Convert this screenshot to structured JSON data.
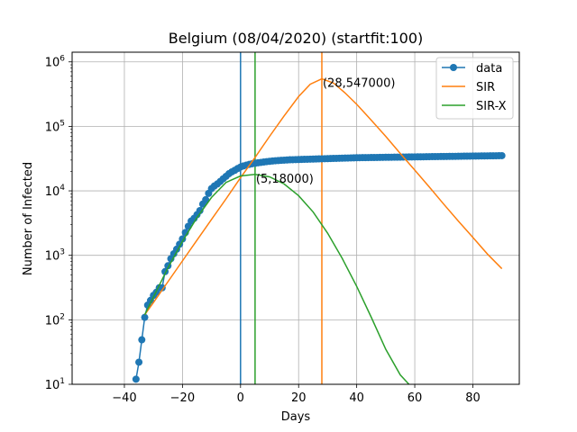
{
  "chart_data": {
    "type": "line",
    "title": "Belgium (08/04/2020) (startfit:100)",
    "xlabel": "Days",
    "ylabel": "Number of Infected",
    "xlim": [
      -58,
      96
    ],
    "ylim_log10": [
      1,
      6.15
    ],
    "yscale": "log",
    "grid": true,
    "legend_position": "top-right",
    "x_ticks": [
      -40,
      -20,
      0,
      20,
      40,
      60,
      80
    ],
    "y_ticks": [
      {
        "exp": 1,
        "base": "10",
        "sup": "1"
      },
      {
        "exp": 2,
        "base": "10",
        "sup": "2"
      },
      {
        "exp": 3,
        "base": "10",
        "sup": "3"
      },
      {
        "exp": 4,
        "base": "10",
        "sup": "4"
      },
      {
        "exp": 5,
        "base": "10",
        "sup": "5"
      },
      {
        "exp": 6,
        "base": "10",
        "sup": "6"
      }
    ],
    "colors": {
      "data": "#1f77b4",
      "sir": "#ff7f0e",
      "sirx": "#2ca02c"
    },
    "legend": [
      {
        "key": "data",
        "label": "data"
      },
      {
        "key": "sir",
        "label": "SIR"
      },
      {
        "key": "sirx",
        "label": "SIR-X"
      }
    ],
    "vlines": [
      {
        "x": 0,
        "series": "data"
      },
      {
        "x": 5,
        "series": "sirx"
      },
      {
        "x": 28,
        "series": "sir"
      }
    ],
    "annotations": [
      {
        "x": 28,
        "y": 547000,
        "text": "(28,547000)"
      },
      {
        "x": 5,
        "y": 18000,
        "text": "(5,18000)"
      }
    ],
    "series": [
      {
        "key": "data",
        "name": "data",
        "marker": "circle",
        "points": [
          [
            -36,
            12
          ],
          [
            -35,
            22
          ],
          [
            -34,
            49
          ],
          [
            -33,
            109
          ],
          [
            -32,
            169
          ],
          [
            -31,
            200
          ],
          [
            -30,
            239
          ],
          [
            -29,
            267
          ],
          [
            -28,
            314
          ],
          [
            -27,
            314
          ],
          [
            -26,
            559
          ],
          [
            -25,
            689
          ],
          [
            -24,
            886
          ],
          [
            -23,
            1058
          ],
          [
            -22,
            1243
          ],
          [
            -21,
            1486
          ],
          [
            -20,
            1795
          ],
          [
            -19,
            2257
          ],
          [
            -18,
            2815
          ],
          [
            -17,
            3401
          ],
          [
            -16,
            3743
          ],
          [
            -15,
            4269
          ],
          [
            -14,
            4937
          ],
          [
            -13,
            6235
          ],
          [
            -12,
            7284
          ],
          [
            -11,
            9134
          ],
          [
            -10,
            10836
          ],
          [
            -9,
            11899
          ],
          [
            -8,
            12775
          ],
          [
            -7,
            13964
          ],
          [
            -6,
            15348
          ],
          [
            -5,
            16770
          ],
          [
            -4,
            18431
          ],
          [
            -3,
            19691
          ],
          [
            -2,
            20814
          ],
          [
            -1,
            22194
          ],
          [
            0,
            23403
          ],
          [
            1,
            24300
          ],
          [
            2,
            25000
          ],
          [
            3,
            25700
          ],
          [
            4,
            26300
          ],
          [
            5,
            26800
          ],
          [
            6,
            27200
          ],
          [
            7,
            27600
          ],
          [
            8,
            28000
          ],
          [
            9,
            28400
          ],
          [
            10,
            28700
          ],
          [
            11,
            29000
          ],
          [
            12,
            29300
          ],
          [
            13,
            29500
          ],
          [
            14,
            29700
          ],
          [
            15,
            29900
          ],
          [
            16,
            30100
          ],
          [
            17,
            30300
          ],
          [
            18,
            30400
          ],
          [
            19,
            30500
          ],
          [
            20,
            30600
          ],
          [
            21,
            30700
          ],
          [
            22,
            30800
          ],
          [
            23,
            30900
          ],
          [
            24,
            31000
          ],
          [
            25,
            31100
          ],
          [
            26,
            31200
          ],
          [
            27,
            31300
          ],
          [
            28,
            31400
          ],
          [
            29,
            31500
          ],
          [
            30,
            31600
          ],
          [
            31,
            31700
          ],
          [
            32,
            31800
          ],
          [
            33,
            31900
          ],
          [
            34,
            32000
          ],
          [
            35,
            32100
          ],
          [
            36,
            32200
          ],
          [
            37,
            32300
          ],
          [
            38,
            32400
          ],
          [
            39,
            32500
          ],
          [
            40,
            32600
          ],
          [
            41,
            32650
          ],
          [
            42,
            32700
          ],
          [
            43,
            32750
          ],
          [
            44,
            32800
          ],
          [
            45,
            32850
          ],
          [
            46,
            32900
          ],
          [
            47,
            32950
          ],
          [
            48,
            33000
          ],
          [
            49,
            33050
          ],
          [
            50,
            33100
          ],
          [
            51,
            33150
          ],
          [
            52,
            33200
          ],
          [
            53,
            33250
          ],
          [
            54,
            33300
          ],
          [
            55,
            33350
          ],
          [
            56,
            33400
          ],
          [
            57,
            33450
          ],
          [
            58,
            33500
          ],
          [
            59,
            33550
          ],
          [
            60,
            33600
          ],
          [
            61,
            33650
          ],
          [
            62,
            33700
          ],
          [
            63,
            33750
          ],
          [
            64,
            33800
          ],
          [
            65,
            33850
          ],
          [
            66,
            33900
          ],
          [
            67,
            33950
          ],
          [
            68,
            34000
          ],
          [
            69,
            34050
          ],
          [
            70,
            34100
          ],
          [
            71,
            34150
          ],
          [
            72,
            34200
          ],
          [
            73,
            34250
          ],
          [
            74,
            34300
          ],
          [
            75,
            34350
          ],
          [
            76,
            34400
          ],
          [
            77,
            34450
          ],
          [
            78,
            34500
          ],
          [
            79,
            34550
          ],
          [
            80,
            34600
          ],
          [
            81,
            34650
          ],
          [
            82,
            34700
          ],
          [
            83,
            34750
          ],
          [
            84,
            34800
          ],
          [
            85,
            34850
          ],
          [
            86,
            34900
          ],
          [
            87,
            34950
          ],
          [
            88,
            35000
          ],
          [
            89,
            35050
          ],
          [
            90,
            35100
          ]
        ]
      },
      {
        "key": "sir",
        "name": "SIR",
        "marker": "none",
        "points": [
          [
            -33,
            120
          ],
          [
            -30,
            185
          ],
          [
            -25,
            390
          ],
          [
            -20,
            820
          ],
          [
            -15,
            1720
          ],
          [
            -10,
            3600
          ],
          [
            -5,
            7500
          ],
          [
            0,
            16000
          ],
          [
            5,
            33000
          ],
          [
            10,
            70000
          ],
          [
            15,
            145000
          ],
          [
            20,
            290000
          ],
          [
            24,
            450000
          ],
          [
            28,
            547000
          ],
          [
            32,
            470000
          ],
          [
            36,
            330000
          ],
          [
            40,
            220000
          ],
          [
            45,
            125000
          ],
          [
            50,
            70000
          ],
          [
            55,
            38000
          ],
          [
            60,
            21000
          ],
          [
            65,
            11500
          ],
          [
            70,
            6200
          ],
          [
            75,
            3400
          ],
          [
            80,
            1900
          ],
          [
            85,
            1050
          ],
          [
            90,
            620
          ]
        ]
      },
      {
        "key": "sirx",
        "name": "SIR-X",
        "marker": "none",
        "points": [
          [
            -33,
            120
          ],
          [
            -30,
            225
          ],
          [
            -25,
            640
          ],
          [
            -20,
            1650
          ],
          [
            -15,
            3850
          ],
          [
            -10,
            7900
          ],
          [
            -5,
            13500
          ],
          [
            0,
            17000
          ],
          [
            5,
            18000
          ],
          [
            10,
            16500
          ],
          [
            15,
            12800
          ],
          [
            20,
            8400
          ],
          [
            25,
            4700
          ],
          [
            30,
            2200
          ],
          [
            35,
            900
          ],
          [
            40,
            330
          ],
          [
            45,
            110
          ],
          [
            50,
            35
          ],
          [
            55,
            14
          ],
          [
            58,
            10
          ]
        ]
      }
    ]
  }
}
